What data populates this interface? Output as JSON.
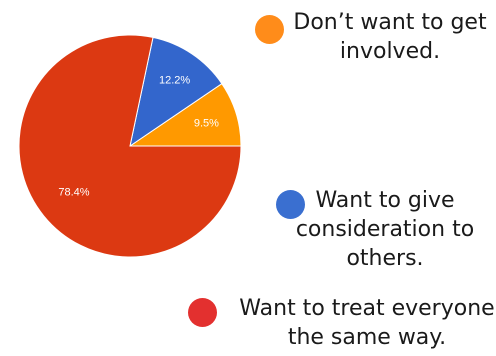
{
  "chart_data": {
    "type": "pie",
    "title": "",
    "start_angle_deg": 0,
    "direction": "counterclockwise",
    "slices": [
      {
        "label": "Don’t want to get involved.",
        "value": 9.5,
        "value_label": "9.5%",
        "color": "#ff9900",
        "label_color": "#ffffff"
      },
      {
        "label": "Want to give consideration to others.",
        "value": 12.2,
        "value_label": "12.2%",
        "color": "#3366cc",
        "label_color": "#ffffff"
      },
      {
        "label": "Want to treat everyone the same way.",
        "value": 78.4,
        "value_label": "78.4%",
        "color": "#dc3912",
        "label_color": "#ffffff"
      }
    ],
    "legend": {
      "placement": "right",
      "items": [
        {
          "lines": [
            "Don’t want to get",
            "involved."
          ],
          "dot_color": "#ff8c1a"
        },
        {
          "lines": [
            "Want to give",
            "consideration to",
            "others."
          ],
          "dot_color": "#3a6fd0"
        },
        {
          "lines": [
            "Want to treat everyone",
            "the same way."
          ],
          "dot_color": "#e3302f"
        }
      ]
    }
  }
}
